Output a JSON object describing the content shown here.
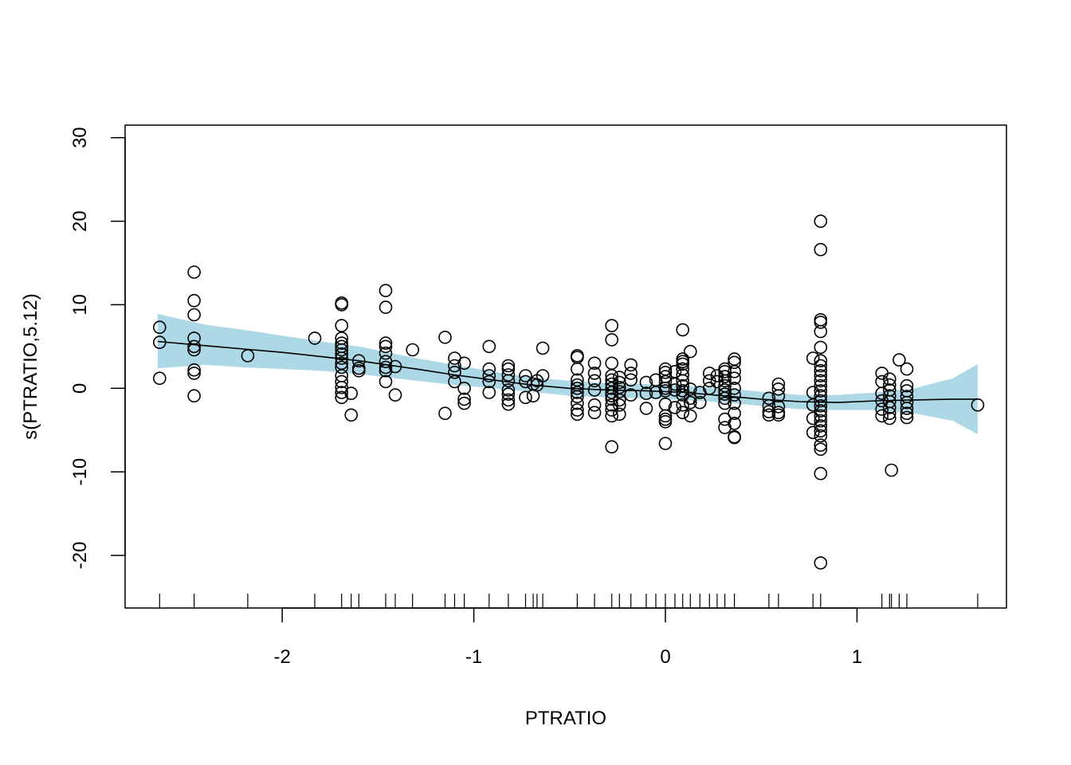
{
  "chart_data": {
    "type": "scatter",
    "title": "",
    "xlabel": "PTRATIO",
    "ylabel": "s(PTRATIO,5.12)",
    "xlim": [
      -2.82,
      1.78
    ],
    "ylim": [
      -26.3,
      31.5
    ],
    "x_ticks": [
      -2,
      -1,
      0,
      1
    ],
    "x_tick_labels": [
      "-2",
      "-1",
      "0",
      "1"
    ],
    "y_ticks": [
      -20,
      -10,
      0,
      10,
      20,
      30
    ],
    "y_tick_labels": [
      "-20",
      "-10",
      "0",
      "10",
      "20",
      "30"
    ],
    "grid": false,
    "legend": "none",
    "colors": {
      "band": "#ADD8E6",
      "line": "#000000",
      "points": "#000000"
    },
    "smooth": {
      "x": [
        -2.65,
        -2.4,
        -2.2,
        -2.0,
        -1.8,
        -1.6,
        -1.45,
        -1.3,
        -1.1,
        -0.9,
        -0.7,
        -0.5,
        -0.3,
        -0.1,
        0.1,
        0.3,
        0.5,
        0.7,
        0.9,
        1.1,
        1.3,
        1.5,
        1.63
      ],
      "fit": [
        5.6,
        5.1,
        4.7,
        4.3,
        3.8,
        3.3,
        2.8,
        2.3,
        1.6,
        1.0,
        0.4,
        0.0,
        -0.2,
        -0.3,
        -0.5,
        -0.9,
        -1.3,
        -1.6,
        -1.7,
        -1.5,
        -1.4,
        -1.3,
        -1.3
      ],
      "upper": [
        8.9,
        7.6,
        7.0,
        6.3,
        5.6,
        5.0,
        4.3,
        3.6,
        2.8,
        2.0,
        1.3,
        0.9,
        0.6,
        0.5,
        0.3,
        0.0,
        -0.4,
        -0.8,
        -0.8,
        -0.5,
        0.0,
        1.2,
        2.9
      ],
      "lower": [
        2.4,
        2.8,
        2.5,
        2.3,
        2.1,
        1.7,
        1.3,
        0.9,
        0.4,
        0.0,
        -0.4,
        -0.9,
        -1.1,
        -1.2,
        -1.4,
        -1.7,
        -2.1,
        -2.5,
        -2.6,
        -2.6,
        -3.0,
        -3.9,
        -5.5
      ]
    },
    "points": [
      [
        -2.64,
        7.3
      ],
      [
        -2.64,
        5.5
      ],
      [
        -2.64,
        1.2
      ],
      [
        -2.46,
        13.9
      ],
      [
        -2.46,
        10.5
      ],
      [
        -2.46,
        8.8
      ],
      [
        -2.46,
        6.0
      ],
      [
        -2.46,
        5.0
      ],
      [
        -2.46,
        4.6
      ],
      [
        -2.46,
        2.2
      ],
      [
        -2.46,
        1.8
      ],
      [
        -2.46,
        -0.9
      ],
      [
        -2.18,
        3.9
      ],
      [
        -1.83,
        6.0
      ],
      [
        -1.69,
        10.2
      ],
      [
        -1.69,
        10.0
      ],
      [
        -1.69,
        7.5
      ],
      [
        -1.69,
        6.0
      ],
      [
        -1.69,
        5.4
      ],
      [
        -1.69,
        5.0
      ],
      [
        -1.69,
        4.6
      ],
      [
        -1.69,
        4.1
      ],
      [
        -1.69,
        3.6
      ],
      [
        -1.69,
        3.0
      ],
      [
        -1.69,
        2.5
      ],
      [
        -1.69,
        1.5
      ],
      [
        -1.69,
        0.8
      ],
      [
        -1.69,
        0.1
      ],
      [
        -1.69,
        -0.5
      ],
      [
        -1.69,
        -1.1
      ],
      [
        -1.64,
        -0.6
      ],
      [
        -1.64,
        -3.2
      ],
      [
        -1.6,
        3.3
      ],
      [
        -1.6,
        2.4
      ],
      [
        -1.6,
        2.1
      ],
      [
        -1.46,
        11.7
      ],
      [
        -1.46,
        9.7
      ],
      [
        -1.46,
        5.4
      ],
      [
        -1.46,
        5.0
      ],
      [
        -1.46,
        4.2
      ],
      [
        -1.46,
        3.2
      ],
      [
        -1.46,
        2.5
      ],
      [
        -1.46,
        2.1
      ],
      [
        -1.46,
        0.8
      ],
      [
        -1.41,
        2.6
      ],
      [
        -1.41,
        -0.8
      ],
      [
        -1.32,
        4.6
      ],
      [
        -1.15,
        6.1
      ],
      [
        -1.15,
        -3.0
      ],
      [
        -1.1,
        3.6
      ],
      [
        -1.1,
        2.7
      ],
      [
        -1.1,
        1.9
      ],
      [
        -1.1,
        0.8
      ],
      [
        -1.05,
        3.0
      ],
      [
        -1.05,
        0.0
      ],
      [
        -1.05,
        -1.3
      ],
      [
        -1.05,
        -1.8
      ],
      [
        -0.92,
        5.0
      ],
      [
        -0.92,
        2.3
      ],
      [
        -0.92,
        1.5
      ],
      [
        -0.92,
        0.8
      ],
      [
        -0.92,
        -0.5
      ],
      [
        -0.82,
        2.7
      ],
      [
        -0.82,
        2.3
      ],
      [
        -0.82,
        1.6
      ],
      [
        -0.82,
        0.9
      ],
      [
        -0.82,
        -0.2
      ],
      [
        -0.82,
        -0.7
      ],
      [
        -0.82,
        -1.4
      ],
      [
        -0.82,
        -1.9
      ],
      [
        -0.73,
        1.5
      ],
      [
        -0.73,
        0.8
      ],
      [
        -0.73,
        -1.1
      ],
      [
        -0.69,
        0.5
      ],
      [
        -0.69,
        -0.9
      ],
      [
        -0.67,
        0.9
      ],
      [
        -0.67,
        0.4
      ],
      [
        -0.64,
        4.8
      ],
      [
        -0.64,
        1.5
      ],
      [
        -0.46,
        3.9
      ],
      [
        -0.46,
        3.7
      ],
      [
        -0.46,
        2.3
      ],
      [
        -0.46,
        1.0
      ],
      [
        -0.46,
        0.4
      ],
      [
        -0.46,
        0.0
      ],
      [
        -0.46,
        -0.5
      ],
      [
        -0.46,
        -1.0
      ],
      [
        -0.46,
        -1.8
      ],
      [
        -0.46,
        -2.6
      ],
      [
        -0.46,
        -3.1
      ],
      [
        -0.37,
        3.0
      ],
      [
        -0.37,
        1.8
      ],
      [
        -0.37,
        0.9
      ],
      [
        -0.37,
        -0.2
      ],
      [
        -0.37,
        -2.0
      ],
      [
        -0.37,
        -2.9
      ],
      [
        -0.28,
        7.5
      ],
      [
        -0.28,
        5.8
      ],
      [
        -0.28,
        3.0
      ],
      [
        -0.28,
        1.5
      ],
      [
        -0.28,
        1.0
      ],
      [
        -0.28,
        0.5
      ],
      [
        -0.28,
        0.0
      ],
      [
        -0.28,
        -0.5
      ],
      [
        -0.28,
        -0.9
      ],
      [
        -0.28,
        -1.3
      ],
      [
        -0.28,
        -2.0
      ],
      [
        -0.28,
        -2.6
      ],
      [
        -0.28,
        -3.3
      ],
      [
        -0.28,
        -7.0
      ],
      [
        -0.24,
        1.3
      ],
      [
        -0.24,
        0.7
      ],
      [
        -0.24,
        0.1
      ],
      [
        -0.24,
        -0.4
      ],
      [
        -0.24,
        -1.4
      ],
      [
        -0.24,
        -2.0
      ],
      [
        -0.24,
        -3.1
      ],
      [
        -0.18,
        2.8
      ],
      [
        -0.18,
        1.8
      ],
      [
        -0.18,
        1.0
      ],
      [
        -0.18,
        -0.8
      ],
      [
        -0.1,
        0.7
      ],
      [
        -0.1,
        -0.6
      ],
      [
        -0.1,
        -2.4
      ],
      [
        -0.05,
        1.0
      ],
      [
        -0.05,
        -0.5
      ],
      [
        0.0,
        2.3
      ],
      [
        0.0,
        1.9
      ],
      [
        0.0,
        1.4
      ],
      [
        0.0,
        0.8
      ],
      [
        0.0,
        0.0
      ],
      [
        0.0,
        -0.3
      ],
      [
        0.0,
        -1.9
      ],
      [
        0.0,
        -3.3
      ],
      [
        0.0,
        -3.7
      ],
      [
        0.0,
        -4.0
      ],
      [
        0.0,
        -6.6
      ],
      [
        0.05,
        2.0
      ],
      [
        0.05,
        0.5
      ],
      [
        0.05,
        -0.2
      ],
      [
        0.05,
        -2.3
      ],
      [
        0.09,
        7.0
      ],
      [
        0.09,
        3.5
      ],
      [
        0.09,
        3.2
      ],
      [
        0.09,
        2.9
      ],
      [
        0.09,
        2.3
      ],
      [
        0.09,
        1.6
      ],
      [
        0.09,
        0.9
      ],
      [
        0.09,
        0.3
      ],
      [
        0.09,
        -0.3
      ],
      [
        0.09,
        -0.8
      ],
      [
        0.09,
        -2.0
      ],
      [
        0.09,
        -2.9
      ],
      [
        0.13,
        4.4
      ],
      [
        0.13,
        -0.1
      ],
      [
        0.13,
        -1.2
      ],
      [
        0.13,
        -1.7
      ],
      [
        0.13,
        -3.3
      ],
      [
        0.18,
        -0.5
      ],
      [
        0.18,
        -1.7
      ],
      [
        0.23,
        1.8
      ],
      [
        0.23,
        0.9
      ],
      [
        0.23,
        0.0
      ],
      [
        0.27,
        1.5
      ],
      [
        0.27,
        0.8
      ],
      [
        0.31,
        2.3
      ],
      [
        0.31,
        2.0
      ],
      [
        0.31,
        1.4
      ],
      [
        0.31,
        0.9
      ],
      [
        0.31,
        0.3
      ],
      [
        0.31,
        -0.2
      ],
      [
        0.31,
        -0.7
      ],
      [
        0.31,
        -1.2
      ],
      [
        0.31,
        -1.8
      ],
      [
        0.31,
        -3.7
      ],
      [
        0.31,
        -4.7
      ],
      [
        0.36,
        3.5
      ],
      [
        0.36,
        3.1
      ],
      [
        0.36,
        2.0
      ],
      [
        0.36,
        1.2
      ],
      [
        0.36,
        0.0
      ],
      [
        0.36,
        -0.8
      ],
      [
        0.36,
        -1.8
      ],
      [
        0.36,
        -3.0
      ],
      [
        0.36,
        -4.2
      ],
      [
        0.36,
        -5.8
      ],
      [
        0.36,
        -5.9
      ],
      [
        0.54,
        -1.2
      ],
      [
        0.54,
        -2.1
      ],
      [
        0.54,
        -2.8
      ],
      [
        0.54,
        -3.2
      ],
      [
        0.59,
        0.5
      ],
      [
        0.59,
        -0.1
      ],
      [
        0.59,
        -0.9
      ],
      [
        0.59,
        -2.2
      ],
      [
        0.59,
        -2.9
      ],
      [
        0.59,
        -3.2
      ],
      [
        0.77,
        3.6
      ],
      [
        0.77,
        -0.5
      ],
      [
        0.77,
        -2.0
      ],
      [
        0.77,
        -3.6
      ],
      [
        0.77,
        -5.3
      ],
      [
        0.81,
        20.0
      ],
      [
        0.81,
        16.6
      ],
      [
        0.81,
        8.2
      ],
      [
        0.81,
        7.9
      ],
      [
        0.81,
        6.8
      ],
      [
        0.81,
        4.9
      ],
      [
        0.81,
        3.3
      ],
      [
        0.81,
        2.7
      ],
      [
        0.81,
        2.1
      ],
      [
        0.81,
        1.5
      ],
      [
        0.81,
        0.9
      ],
      [
        0.81,
        0.3
      ],
      [
        0.81,
        -0.3
      ],
      [
        0.81,
        -0.9
      ],
      [
        0.81,
        -1.5
      ],
      [
        0.81,
        -2.1
      ],
      [
        0.81,
        -2.7
      ],
      [
        0.81,
        -3.3
      ],
      [
        0.81,
        -3.9
      ],
      [
        0.81,
        -4.5
      ],
      [
        0.81,
        -5.1
      ],
      [
        0.81,
        -5.7
      ],
      [
        0.81,
        -6.8
      ],
      [
        0.81,
        -7.3
      ],
      [
        0.81,
        -10.2
      ],
      [
        0.81,
        -20.9
      ],
      [
        1.13,
        1.8
      ],
      [
        1.13,
        0.8
      ],
      [
        1.13,
        -0.6
      ],
      [
        1.13,
        -1.5
      ],
      [
        1.13,
        -2.5
      ],
      [
        1.13,
        -3.3
      ],
      [
        1.17,
        1.1
      ],
      [
        1.17,
        0.4
      ],
      [
        1.17,
        -0.2
      ],
      [
        1.17,
        -0.9
      ],
      [
        1.17,
        -1.6
      ],
      [
        1.17,
        -2.3
      ],
      [
        1.17,
        -3.0
      ],
      [
        1.17,
        -3.6
      ],
      [
        1.18,
        -9.8
      ],
      [
        1.22,
        3.4
      ],
      [
        1.26,
        2.3
      ],
      [
        1.26,
        0.3
      ],
      [
        1.26,
        -0.3
      ],
      [
        1.26,
        -1.0
      ],
      [
        1.26,
        -1.7
      ],
      [
        1.26,
        -2.4
      ],
      [
        1.26,
        -3.0
      ],
      [
        1.26,
        -3.5
      ],
      [
        1.63,
        -2.0
      ]
    ],
    "rug": [
      -2.64,
      -2.46,
      -2.18,
      -1.83,
      -1.69,
      -1.64,
      -1.6,
      -1.46,
      -1.41,
      -1.32,
      -1.15,
      -1.1,
      -1.05,
      -0.92,
      -0.82,
      -0.73,
      -0.69,
      -0.67,
      -0.64,
      -0.46,
      -0.37,
      -0.28,
      -0.24,
      -0.18,
      -0.1,
      -0.05,
      0.0,
      0.05,
      0.09,
      0.13,
      0.18,
      0.23,
      0.27,
      0.31,
      0.36,
      0.54,
      0.59,
      0.77,
      0.81,
      1.13,
      1.17,
      1.18,
      1.22,
      1.26,
      1.63
    ]
  }
}
